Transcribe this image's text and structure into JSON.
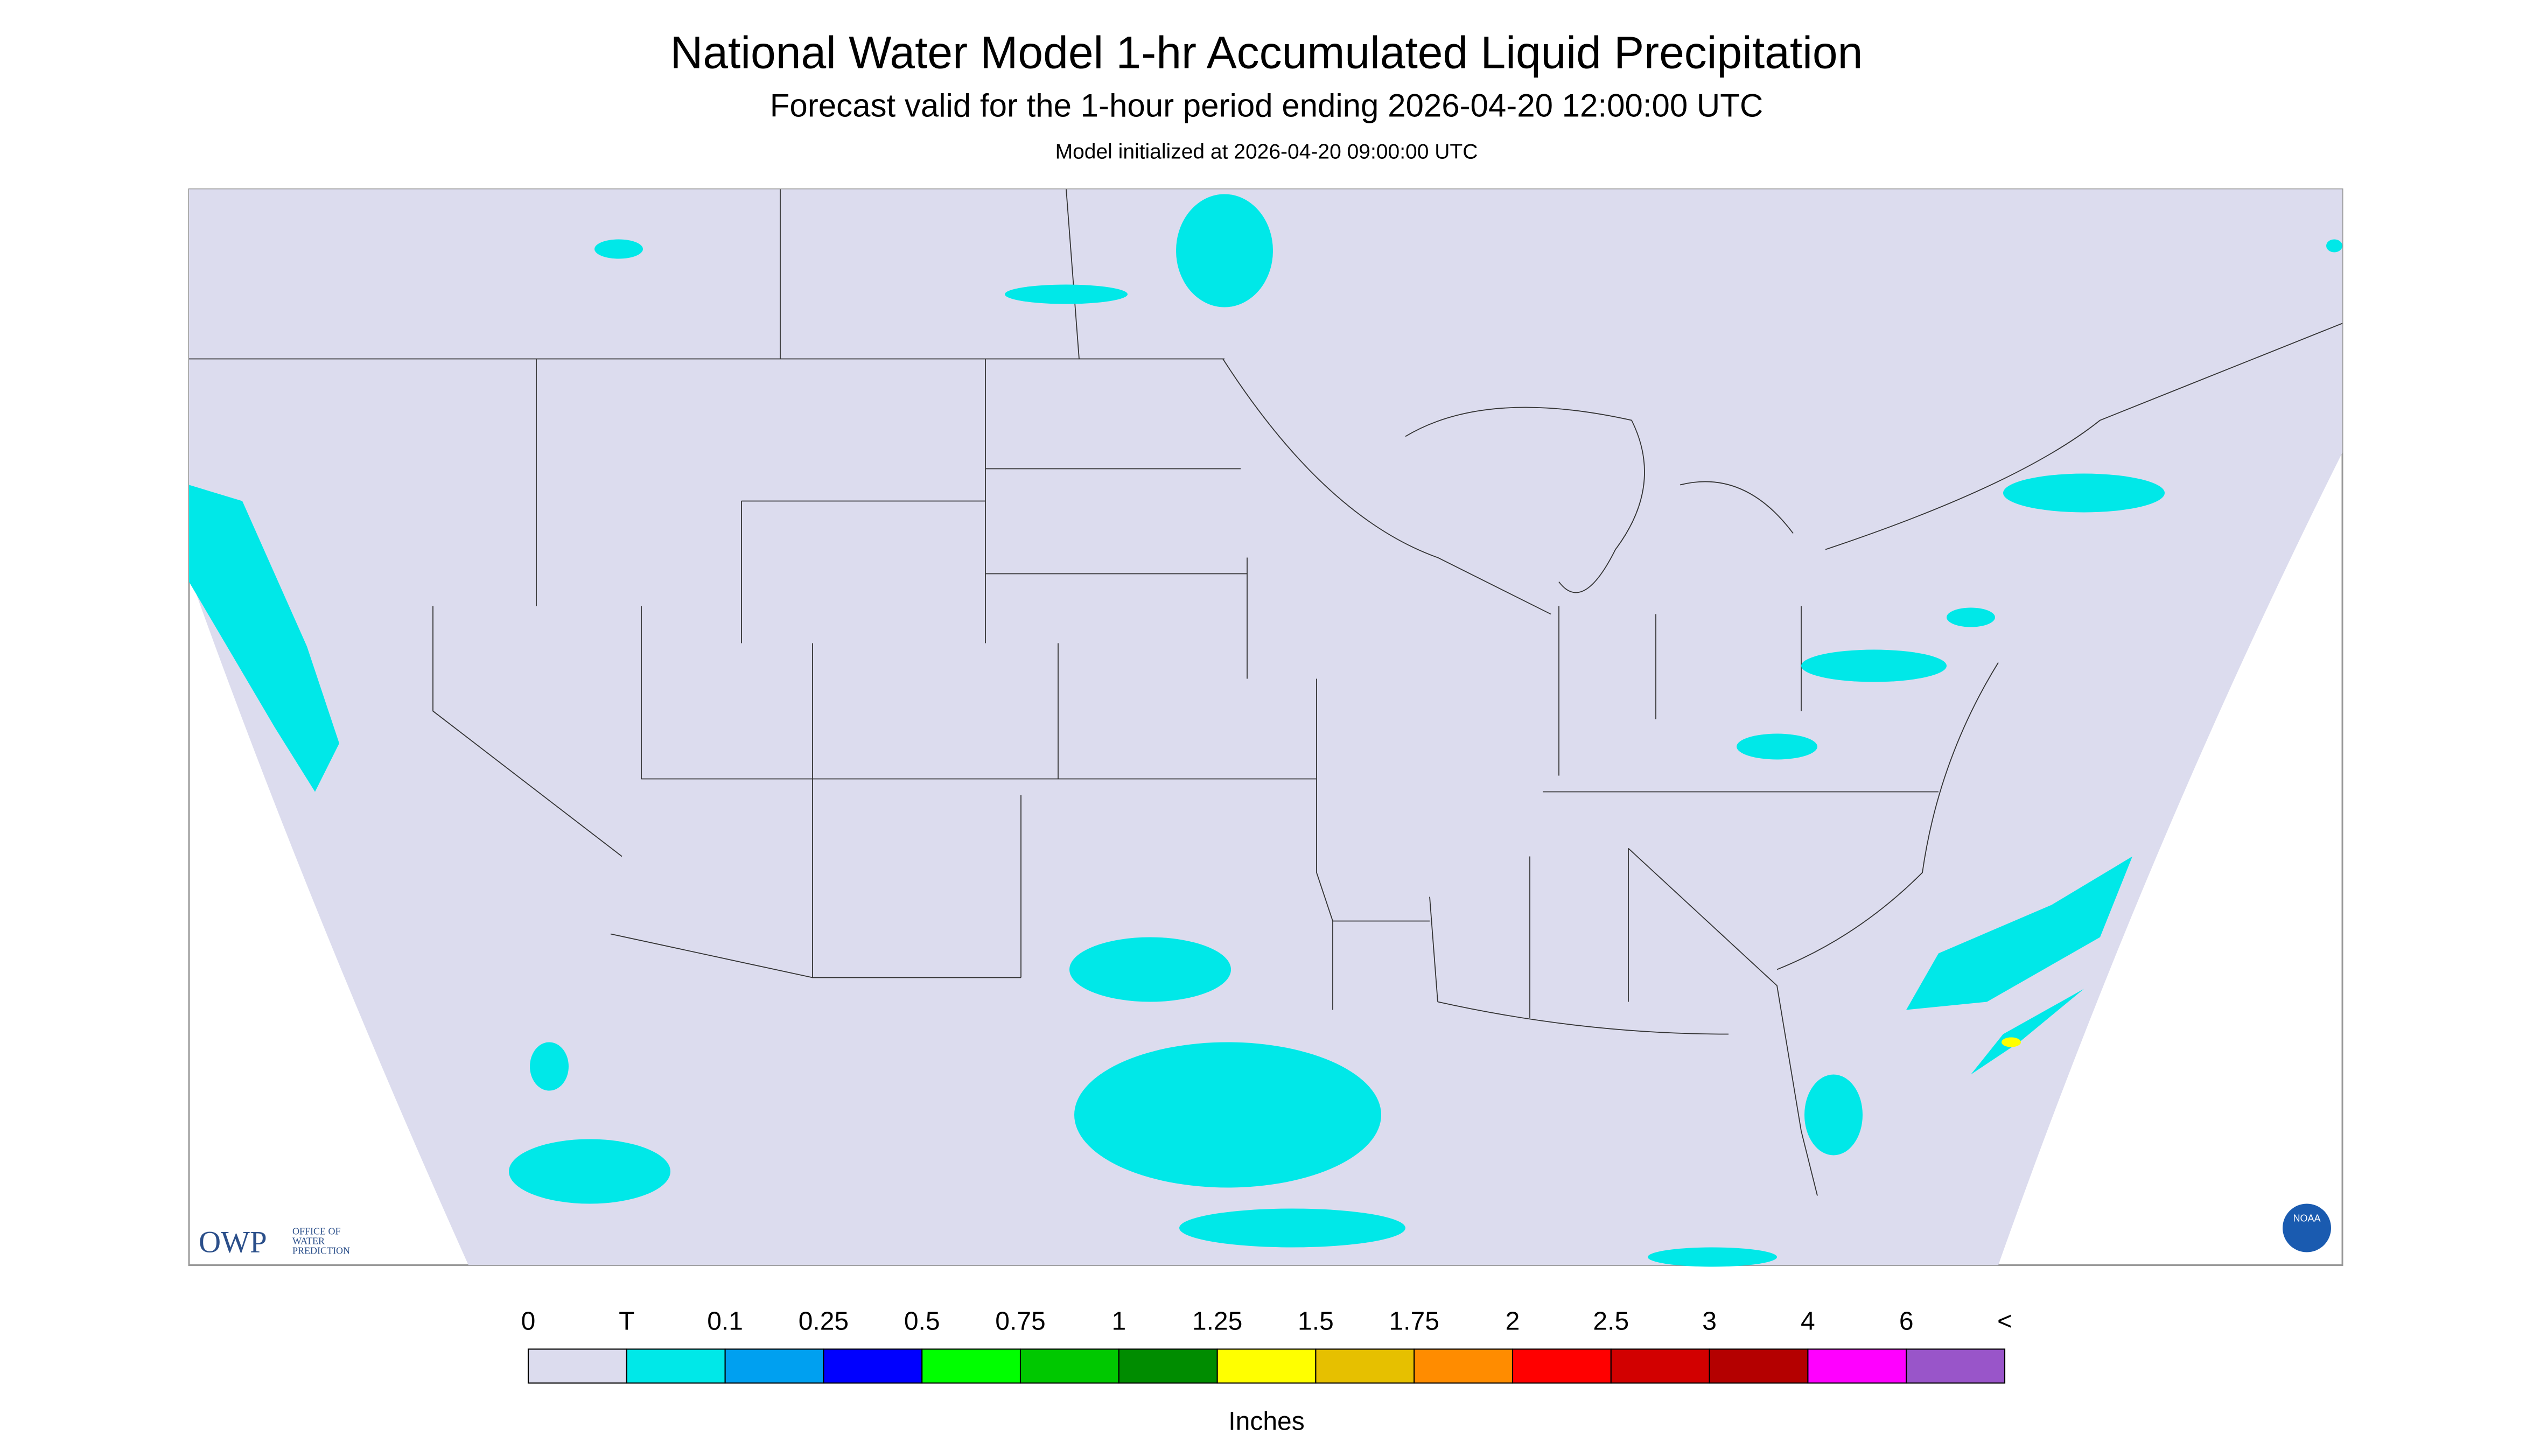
{
  "header": {
    "title": "National Water Model 1-hr Accumulated Liquid Precipitation",
    "subtitle": "Forecast valid for the 1-hour period ending 2026-04-20 12:00:00 UTC",
    "note": "Model initialized at 2026-04-20 09:00:00 UTC"
  },
  "logos": {
    "owp": "OWP",
    "owp_lines": [
      "OFFICE OF",
      "WATER",
      "PREDICTION"
    ],
    "noaa": "NOAA"
  },
  "legend": {
    "labels": [
      "0",
      "T",
      "0.1",
      "0.25",
      "0.5",
      "0.75",
      "1",
      "1.25",
      "1.5",
      "1.75",
      "2",
      "2.5",
      "3",
      "4",
      "6",
      "<"
    ],
    "colors": [
      "#dcdcee",
      "#00e8e8",
      "#00a0f0",
      "#0000ff",
      "#00ff00",
      "#00c800",
      "#008c00",
      "#ffff00",
      "#e6c000",
      "#ff8c00",
      "#ff0000",
      "#d20000",
      "#b40000",
      "#ff00ff",
      "#9955c9"
    ],
    "unit": "Inches"
  }
}
